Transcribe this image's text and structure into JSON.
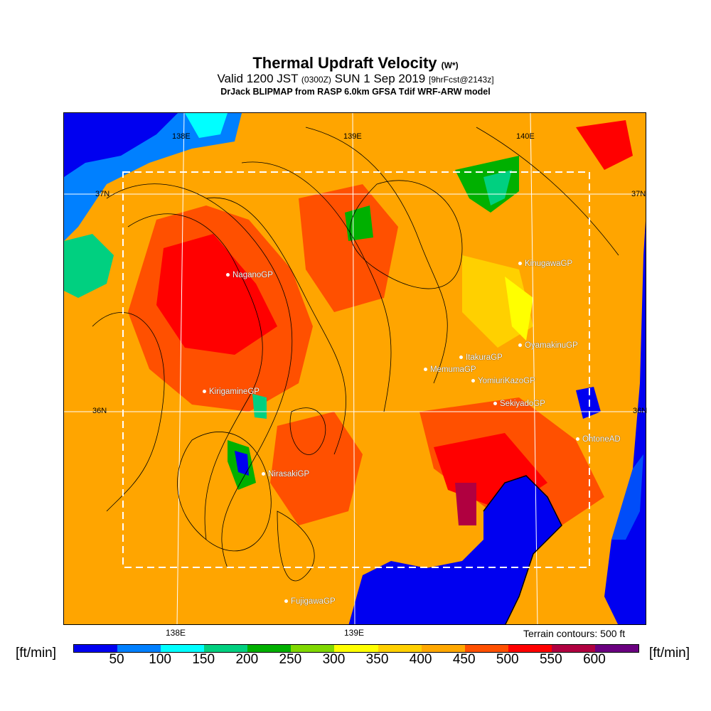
{
  "title": {
    "main": "Thermal Updraft Velocity",
    "param": "(W*)",
    "valid_a": "Valid 1200 JST",
    "valid_z": "(0300Z)",
    "valid_b": "SUN 1 Sep 2019",
    "fcst": "[9hrFcst@2143z]",
    "model": "DrJack BLIPMAP from RASP 6.0km GFSA Tdif WRF-ARW model"
  },
  "grid": {
    "lon_top": [
      "138E",
      "139E",
      "140E"
    ],
    "lon_bottom": [
      "138E",
      "139E"
    ],
    "lat": [
      "37N",
      "36N"
    ]
  },
  "stations": [
    "NaganoGP",
    "KinugawaGP",
    "OyamakinuGP",
    "ItakuraGP",
    "MemumaGP",
    "YomiuriKazoGP",
    "KirigamineGP",
    "SekiyadoGP",
    "OhtoneAD",
    "NirasakiGP",
    "FujigawaGP"
  ],
  "terrain_note": "Terrain contours: 500 ft",
  "colorbar": {
    "unit": "[ft/min]",
    "ticks": [
      "50",
      "100",
      "150",
      "200",
      "250",
      "300",
      "350",
      "400",
      "450",
      "500",
      "550",
      "600"
    ],
    "colors": [
      "#0000f0",
      "#0080ff",
      "#00ffff",
      "#00d080",
      "#00b000",
      "#80d800",
      "#ffff00",
      "#ffd000",
      "#ffa800",
      "#ff5000",
      "#ff0000",
      "#b00040",
      "#6a0080"
    ]
  }
}
